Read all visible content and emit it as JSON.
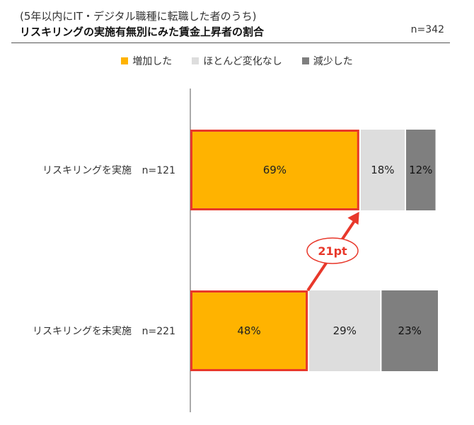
{
  "header": {
    "subtitle": "(5年以内にIT・デジタル職種に転職した者のうち)",
    "title": "リスキリングの実施有無別にみた賃金上昇者の割合",
    "n_total": "n=342"
  },
  "colors": {
    "increased": "#FFB300",
    "unchanged": "#DDDDDD",
    "decreased": "#7F7F7F",
    "highlight": "#E8382B"
  },
  "chart_data": {
    "type": "bar",
    "orientation": "horizontal",
    "stacked": true,
    "categories": [
      "リスキリングを実施",
      "リスキリングを未実施"
    ],
    "category_n": [
      "n=121",
      "n=221"
    ],
    "series": [
      {
        "name": "増加した",
        "values": [
          69,
          48
        ]
      },
      {
        "name": "ほとんど変化なし",
        "values": [
          18,
          29
        ]
      },
      {
        "name": "減少した",
        "values": [
          12,
          23
        ]
      }
    ],
    "value_labels": [
      [
        "69%",
        "18%",
        "12%"
      ],
      [
        "48%",
        "29%",
        "23%"
      ]
    ],
    "xlim": [
      0,
      100
    ],
    "legend_position": "top-center",
    "annotation": {
      "label": "21pt",
      "from_category": 1,
      "to_category": 0
    }
  }
}
